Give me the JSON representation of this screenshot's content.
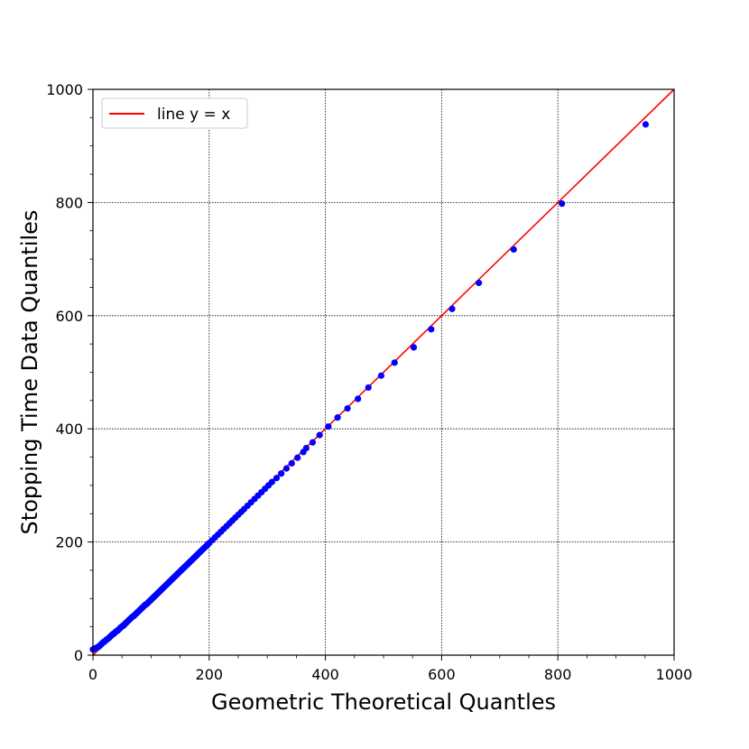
{
  "chart_data": {
    "type": "scatter",
    "title": "",
    "xlabel": "Geometric Theoretical Quantles",
    "ylabel": "Stopping Time Data Quantiles",
    "xlim": [
      0,
      1000
    ],
    "ylim": [
      0,
      1000
    ],
    "xticks": [
      "0",
      "200",
      "400",
      "600",
      "800",
      "1000"
    ],
    "yticks": [
      "0",
      "200",
      "400",
      "600",
      "800",
      "1000"
    ],
    "grid": true,
    "legend": {
      "placement": "top-left",
      "entries": [
        "line y = x"
      ]
    },
    "reference_line": {
      "name": "line y = x",
      "color": "#ff0000",
      "from": [
        0,
        0
      ],
      "to": [
        1000,
        1000
      ]
    },
    "series": [
      {
        "name": "",
        "color": "#0000ff",
        "x": [
          0,
          2,
          4,
          6,
          8,
          10,
          12,
          14,
          16,
          18,
          20,
          22,
          24,
          26,
          28,
          30,
          32,
          34,
          36,
          38,
          40,
          42,
          44,
          46,
          48,
          50,
          52,
          54,
          56,
          58,
          60,
          62,
          64,
          66,
          68,
          70,
          72,
          74,
          76,
          78,
          80,
          82,
          84,
          86,
          88,
          90,
          92,
          94,
          96,
          98,
          100,
          102,
          104,
          106,
          108,
          110,
          112,
          114,
          116,
          118,
          120,
          122,
          124,
          126,
          128,
          130,
          132,
          134,
          136,
          138,
          140,
          142,
          144,
          146,
          148,
          150,
          152,
          154,
          156,
          158,
          160,
          162,
          164,
          166,
          168,
          170,
          172,
          174,
          176,
          178,
          180,
          182,
          184,
          186,
          188,
          190,
          192,
          194,
          196,
          198,
          200,
          205,
          210,
          215,
          220,
          225,
          230,
          235,
          240,
          245,
          250,
          255,
          260,
          266,
          272,
          278,
          284,
          290,
          296,
          302,
          308,
          316,
          324,
          333,
          342,
          352,
          362,
          367,
          378,
          390,
          405,
          421,
          438,
          456,
          474,
          496,
          519,
          552,
          582,
          618,
          664,
          724,
          807,
          951
        ],
        "y": [
          10,
          11,
          12,
          13,
          14,
          15,
          17,
          19,
          21,
          23,
          24,
          26,
          28,
          29,
          31,
          33,
          35,
          37,
          38,
          40,
          42,
          43,
          45,
          47,
          49,
          51,
          52,
          54,
          56,
          58,
          60,
          62,
          64,
          66,
          68,
          69,
          71,
          73,
          75,
          77,
          79,
          81,
          83,
          85,
          87,
          89,
          90,
          92,
          94,
          96,
          98,
          100,
          102,
          104,
          106,
          108,
          110,
          112,
          114,
          116,
          118,
          120,
          122,
          124,
          126,
          128,
          130,
          132,
          134,
          136,
          138,
          140,
          142,
          144,
          146,
          148,
          150,
          152,
          154,
          156,
          158,
          160,
          162,
          164,
          166,
          168,
          170,
          172,
          174,
          176,
          178,
          180,
          182,
          184,
          186,
          188,
          190,
          192,
          194,
          196,
          198,
          203,
          208,
          213,
          218,
          223,
          228,
          233,
          238,
          243,
          248,
          253,
          258,
          264,
          270,
          276,
          282,
          288,
          294,
          300,
          306,
          313,
          321,
          330,
          339,
          349,
          359,
          366,
          376,
          389,
          404,
          420,
          436,
          453,
          473,
          494,
          517,
          544,
          576,
          612,
          658,
          717,
          798,
          938
        ]
      }
    ]
  }
}
